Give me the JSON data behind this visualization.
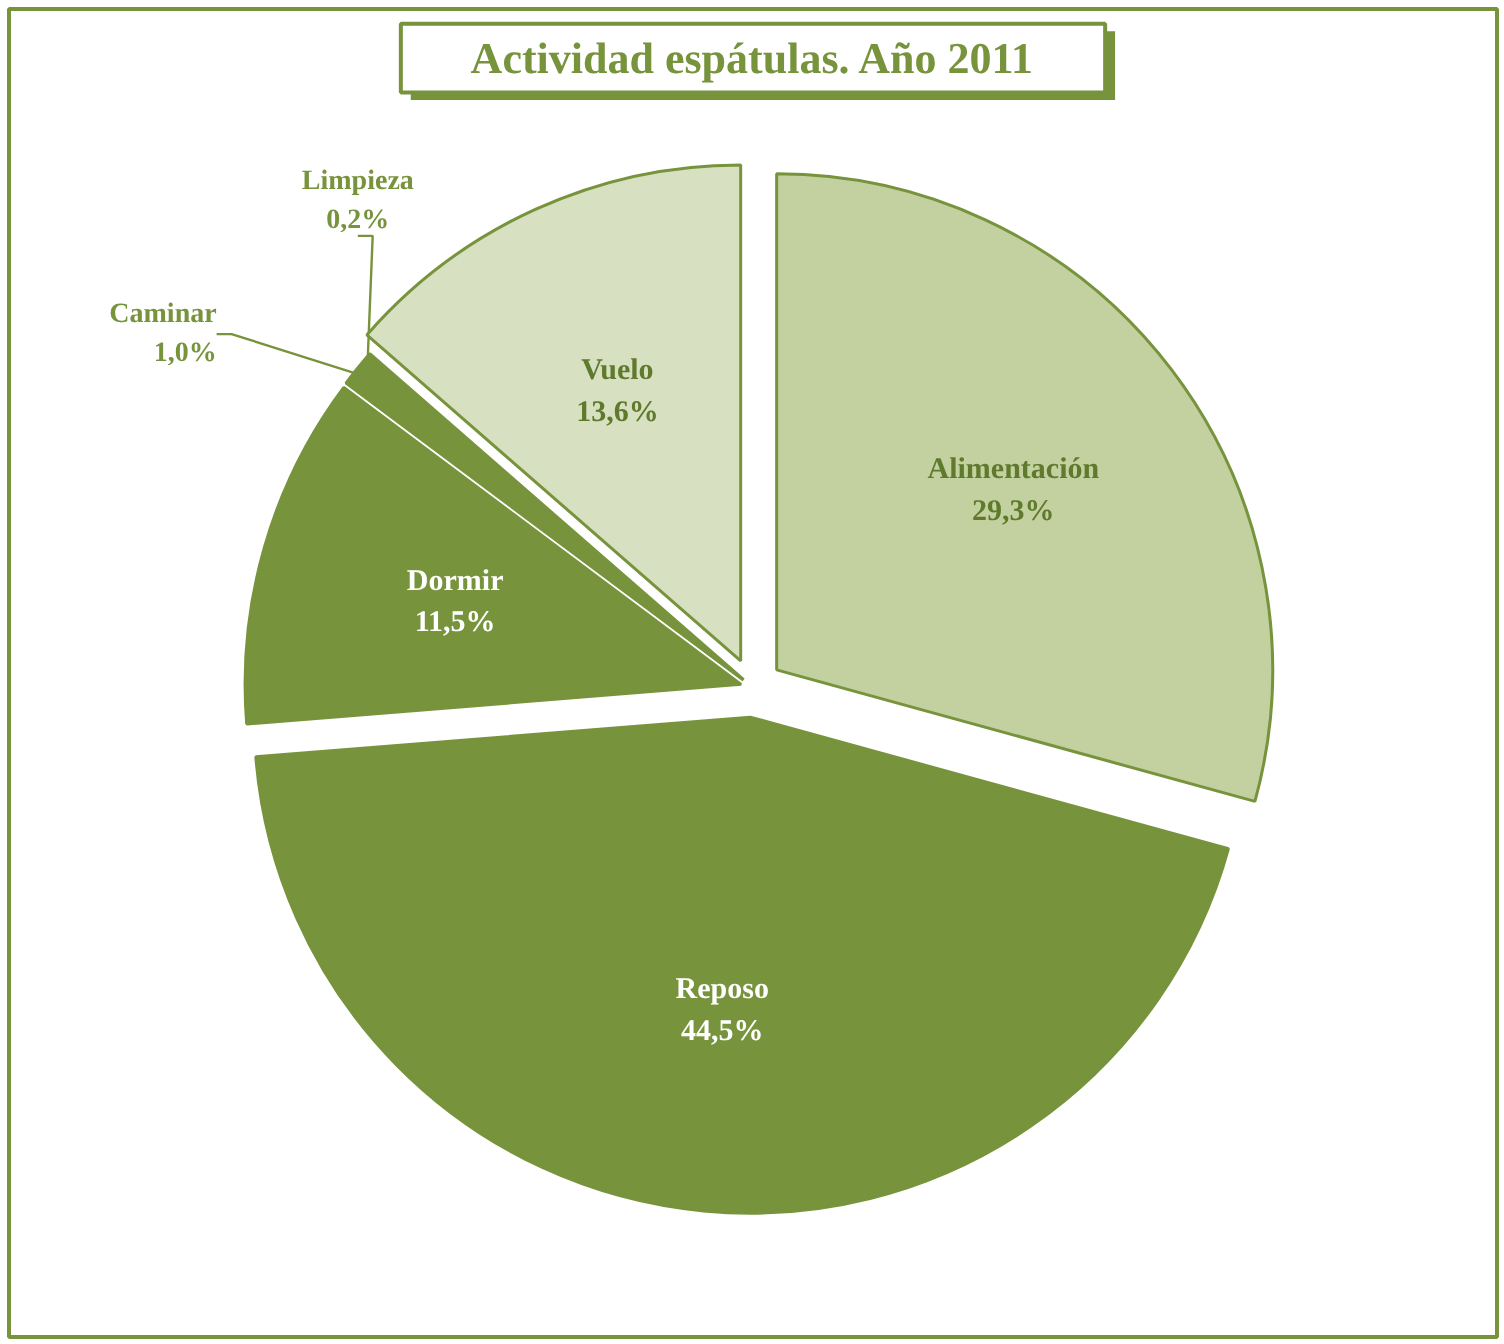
{
  "chart_data": {
    "type": "pie",
    "title": "Actividad espátulas. Año 2011",
    "categories": [
      "Alimentación",
      "Reposo",
      "Dormir",
      "Caminar",
      "Limpieza",
      "Vuelo"
    ],
    "values": [
      29.3,
      44.5,
      11.5,
      1.0,
      0.2,
      13.6
    ],
    "value_labels": [
      "29,3%",
      "44,5%",
      "11,5%",
      "1,0%",
      "0,2%",
      "13,6%"
    ],
    "colors": [
      "#c3d0a0",
      "#77933c",
      "#77933c",
      "#77933c",
      "#77933c",
      "#d7e0c0"
    ]
  }
}
